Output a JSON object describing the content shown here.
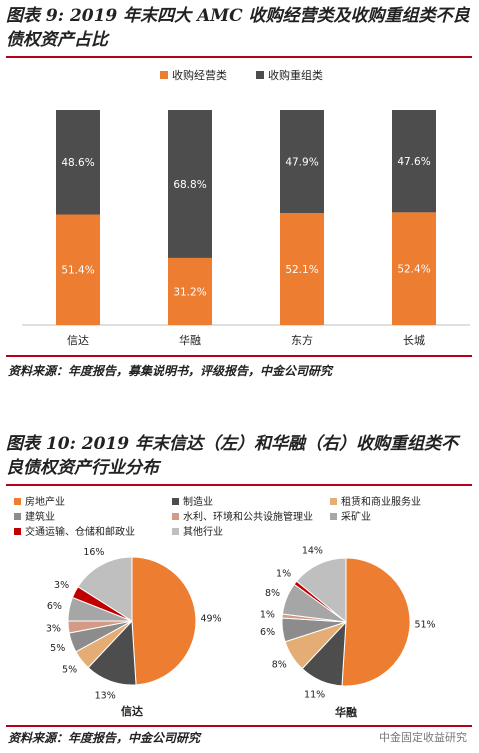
{
  "figure1": {
    "title": "图表 9: 2019 年末四大 AMC 收购经营类及收购重组类不良债权资产占比",
    "source": "资料来源：年度报告，募集说明书，评级报告，中金公司研究"
  },
  "figure2": {
    "title": "图表 10: 2019 年末信达（左）和华融（右）收购重组类不良债权资产行业分布",
    "source": "资料来源：年度报告，中金公司研究"
  },
  "watermark": "中金固定收益研究",
  "colors": {
    "orange": "#ed7d31",
    "dark": "#4d4d4d",
    "rule": "#b3001b"
  },
  "chart_data": [
    {
      "type": "bar",
      "stacked": true,
      "percent": true,
      "categories": [
        "信达",
        "华融",
        "东方",
        "长城"
      ],
      "series": [
        {
          "name": "收购经营类",
          "color": "#ed7d31",
          "values": [
            51.4,
            31.2,
            52.1,
            52.4
          ]
        },
        {
          "name": "收购重组类",
          "color": "#4d4d4d",
          "values": [
            48.6,
            68.8,
            47.9,
            47.6
          ]
        }
      ],
      "ylim": [
        0,
        100
      ],
      "legend": "top-center",
      "grid": false
    },
    {
      "type": "pie",
      "categories": [
        "房地产业",
        "制造业",
        "租赁和商业服务业",
        "建筑业",
        "水利、环境和公共设施管理业",
        "采矿业",
        "交通运输、仓储和邮政业",
        "其他行业"
      ],
      "colors": [
        "#ed7d31",
        "#4d4d4d",
        "#e3ad75",
        "#8c8c8c",
        "#d49a86",
        "#a6a6a6",
        "#c00000",
        "#bfbfbf"
      ],
      "legend": "top",
      "pies": [
        {
          "name": "信达",
          "values": [
            49,
            13,
            5,
            5,
            3,
            6,
            3,
            16
          ]
        },
        {
          "name": "华融",
          "values": [
            51,
            11,
            8,
            6,
            1,
            8,
            1,
            14
          ]
        }
      ]
    }
  ]
}
